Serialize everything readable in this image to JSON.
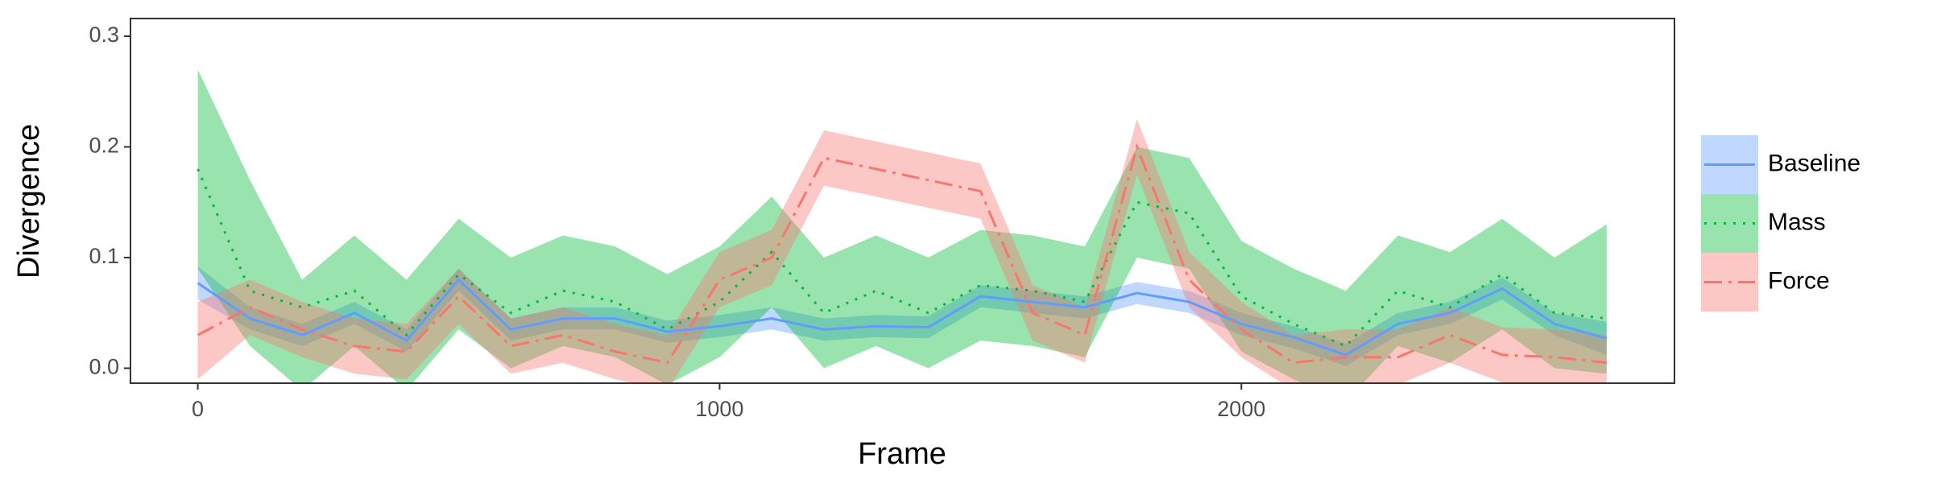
{
  "chart_data": {
    "type": "line",
    "xlabel": "Frame",
    "ylabel": "Divergence",
    "x": [
      0,
      100,
      200,
      300,
      400,
      500,
      600,
      700,
      800,
      900,
      1000,
      1100,
      1200,
      1300,
      1400,
      1500,
      1600,
      1700,
      1800,
      1900,
      2000,
      2100,
      2200,
      2300,
      2400,
      2500,
      2600,
      2700
    ],
    "xlim": [
      -129,
      2830
    ],
    "xticks": [
      0,
      1000,
      2000
    ],
    "ylim": [
      -0.0135,
      0.316
    ],
    "yticks": [
      {
        "value": 0,
        "label": "0.0"
      },
      0.1,
      0.2,
      0.3
    ],
    "grid": false,
    "legend": "right",
    "series": [
      {
        "name": "Baseline",
        "color": "#619CFF",
        "linestyle": "solid",
        "values": [
          0.077,
          0.045,
          0.03,
          0.05,
          0.025,
          0.08,
          0.035,
          0.045,
          0.045,
          0.033,
          0.038,
          0.045,
          0.035,
          0.038,
          0.037,
          0.065,
          0.06,
          0.055,
          0.068,
          0.06,
          0.04,
          0.028,
          0.012,
          0.04,
          0.05,
          0.072,
          0.04,
          0.027
        ],
        "lower": [
          0.062,
          0.035,
          0.02,
          0.04,
          0.015,
          0.07,
          0.025,
          0.035,
          0.035,
          0.023,
          0.028,
          0.035,
          0.025,
          0.028,
          0.027,
          0.055,
          0.05,
          0.045,
          0.058,
          0.05,
          0.03,
          0.018,
          0.002,
          0.03,
          0.04,
          0.062,
          0.03,
          0.012
        ],
        "upper": [
          0.092,
          0.055,
          0.04,
          0.06,
          0.035,
          0.09,
          0.045,
          0.055,
          0.055,
          0.043,
          0.048,
          0.055,
          0.045,
          0.048,
          0.047,
          0.075,
          0.07,
          0.065,
          0.078,
          0.07,
          0.05,
          0.038,
          0.022,
          0.05,
          0.06,
          0.082,
          0.05,
          0.042
        ]
      },
      {
        "name": "Mass",
        "color": "#00BA38",
        "linestyle": "dotted",
        "values": [
          0.18,
          0.07,
          0.055,
          0.07,
          0.03,
          0.085,
          0.05,
          0.07,
          0.06,
          0.035,
          0.06,
          0.105,
          0.05,
          0.07,
          0.05,
          0.075,
          0.07,
          0.06,
          0.15,
          0.14,
          0.065,
          0.04,
          0.02,
          0.07,
          0.055,
          0.085,
          0.05,
          0.045
        ],
        "lower": [
          0.09,
          0.02,
          -0.02,
          0.02,
          -0.02,
          0.035,
          0.0,
          0.02,
          0.01,
          -0.015,
          0.01,
          0.055,
          0.0,
          0.02,
          0.0,
          0.025,
          0.02,
          0.01,
          0.1,
          0.09,
          0.015,
          -0.01,
          -0.03,
          0.02,
          0.005,
          0.035,
          0.0,
          -0.005
        ],
        "upper": [
          0.27,
          0.17,
          0.08,
          0.12,
          0.08,
          0.135,
          0.1,
          0.12,
          0.11,
          0.085,
          0.11,
          0.155,
          0.1,
          0.12,
          0.1,
          0.125,
          0.12,
          0.11,
          0.2,
          0.19,
          0.115,
          0.09,
          0.07,
          0.12,
          0.105,
          0.135,
          0.1,
          0.13
        ]
      },
      {
        "name": "Force",
        "color": "#F8766D",
        "linestyle": "dashdot",
        "values": [
          0.03,
          0.055,
          0.035,
          0.02,
          0.015,
          0.065,
          0.02,
          0.03,
          0.015,
          0.005,
          0.08,
          0.1,
          0.19,
          0.18,
          0.17,
          0.16,
          0.05,
          0.03,
          0.2,
          0.08,
          0.035,
          0.005,
          0.01,
          0.01,
          0.03,
          0.012,
          0.01,
          0.005
        ],
        "lower": [
          -0.01,
          0.03,
          0.01,
          -0.005,
          -0.01,
          0.04,
          -0.005,
          0.005,
          -0.01,
          -0.02,
          0.055,
          0.075,
          0.165,
          0.155,
          0.145,
          0.135,
          0.025,
          0.005,
          0.175,
          0.055,
          0.01,
          -0.02,
          -0.015,
          -0.015,
          0.005,
          -0.013,
          -0.015,
          -0.02
        ],
        "upper": [
          0.06,
          0.08,
          0.06,
          0.045,
          0.04,
          0.09,
          0.045,
          0.055,
          0.04,
          0.03,
          0.105,
          0.125,
          0.215,
          0.205,
          0.195,
          0.185,
          0.075,
          0.055,
          0.225,
          0.105,
          0.06,
          0.03,
          0.035,
          0.035,
          0.055,
          0.037,
          0.035,
          0.03
        ]
      }
    ]
  }
}
